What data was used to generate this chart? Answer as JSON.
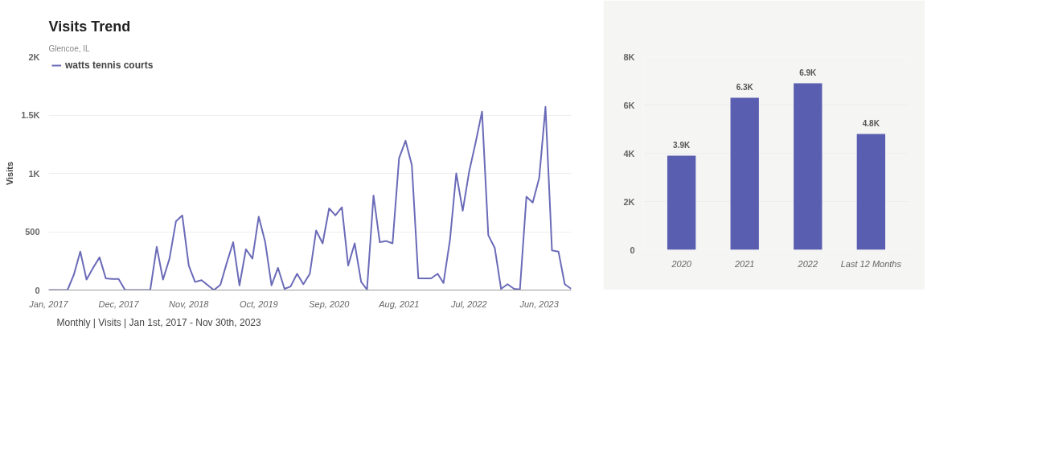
{
  "chart_data": [
    {
      "type": "line",
      "title": "Visits Trend",
      "subtitle": "Glencoe, IL",
      "ylabel": "Visits",
      "legend": "top left",
      "grid": "y",
      "line_style": "solid",
      "marker": "none",
      "x": [
        "2017-01",
        "2017-02",
        "2017-03",
        "2017-04",
        "2017-05",
        "2017-06",
        "2017-07",
        "2017-08",
        "2017-09",
        "2017-10",
        "2017-11",
        "2017-12",
        "2018-01",
        "2018-02",
        "2018-03",
        "2018-04",
        "2018-05",
        "2018-06",
        "2018-07",
        "2018-08",
        "2018-09",
        "2018-10",
        "2018-11",
        "2018-12",
        "2019-01",
        "2019-02",
        "2019-03",
        "2019-04",
        "2019-05",
        "2019-06",
        "2019-07",
        "2019-08",
        "2019-09",
        "2019-10",
        "2019-11",
        "2019-12",
        "2020-01",
        "2020-02",
        "2020-03",
        "2020-04",
        "2020-05",
        "2020-06",
        "2020-07",
        "2020-08",
        "2020-09",
        "2020-10",
        "2020-11",
        "2020-12",
        "2021-01",
        "2021-02",
        "2021-03",
        "2021-04",
        "2021-05",
        "2021-06",
        "2021-07",
        "2021-08",
        "2021-09",
        "2021-10",
        "2021-11",
        "2021-12",
        "2022-01",
        "2022-02",
        "2022-03",
        "2022-04",
        "2022-05",
        "2022-06",
        "2022-07",
        "2022-08",
        "2022-09",
        "2022-10",
        "2022-11",
        "2022-12",
        "2023-01",
        "2023-02",
        "2023-03",
        "2023-04",
        "2023-05",
        "2023-06",
        "2023-07",
        "2023-08",
        "2023-09",
        "2023-10",
        "2023-11"
      ],
      "series": [
        {
          "name": "watts tennis courts",
          "color": "#6a6ab8",
          "values": [
            0,
            0,
            0,
            0,
            130,
            330,
            90,
            190,
            280,
            100,
            95,
            95,
            0,
            0,
            0,
            0,
            0,
            370,
            90,
            270,
            590,
            640,
            210,
            70,
            85,
            40,
            0,
            45,
            230,
            410,
            40,
            350,
            270,
            630,
            410,
            40,
            190,
            10,
            30,
            140,
            50,
            140,
            510,
            400,
            700,
            640,
            710,
            210,
            400,
            70,
            5,
            810,
            410,
            420,
            400,
            1130,
            1280,
            1070,
            100,
            100,
            100,
            140,
            60,
            430,
            1000,
            680,
            1010,
            1260,
            1530,
            470,
            360,
            10,
            50,
            10,
            5,
            800,
            750,
            960,
            1570,
            340,
            330,
            50,
            10
          ]
        }
      ],
      "ylim": [
        0,
        2000
      ],
      "yticks": [
        0,
        500,
        {
          "value": 1000,
          "label": "1K"
        },
        {
          "value": 1500,
          "label": "1.5K"
        },
        {
          "value": 2000,
          "label": "2K"
        }
      ],
      "xlim": [
        "2017-01",
        "2023-11"
      ],
      "xticks": [
        {
          "value": "2017-01",
          "label": "Jan, 2017"
        },
        {
          "value": "2017-12",
          "label": "Dec, 2017"
        },
        {
          "value": "2018-11",
          "label": "Nov, 2018"
        },
        {
          "value": "2019-10",
          "label": "Oct, 2019"
        },
        {
          "value": "2020-09",
          "label": "Sep, 2020"
        },
        {
          "value": "2021-08",
          "label": "Aug, 2021"
        },
        {
          "value": "2022-07",
          "label": "Jul, 2022"
        },
        {
          "value": "2023-06",
          "label": "Jun, 2023"
        }
      ],
      "annotations": [
        "Monthly | Visits | Jan 1st, 2017 - Nov 30th, 2023"
      ]
    },
    {
      "type": "bar",
      "grid": "y",
      "categories": [
        "2020",
        "2021",
        "2022",
        "Last 12 Months"
      ],
      "values": [
        3900,
        6300,
        6900,
        4800
      ],
      "color": "#5a5eb0",
      "value_labels": [
        "3.9K",
        "6.3K",
        "6.9K",
        "4.8K"
      ],
      "ylim": [
        0,
        8000
      ],
      "yticks": [
        0,
        {
          "value": 2000,
          "label": "2K"
        },
        {
          "value": 4000,
          "label": "4K"
        },
        {
          "value": 6000,
          "label": "6K"
        },
        {
          "value": 8000,
          "label": "8K"
        }
      ]
    }
  ]
}
